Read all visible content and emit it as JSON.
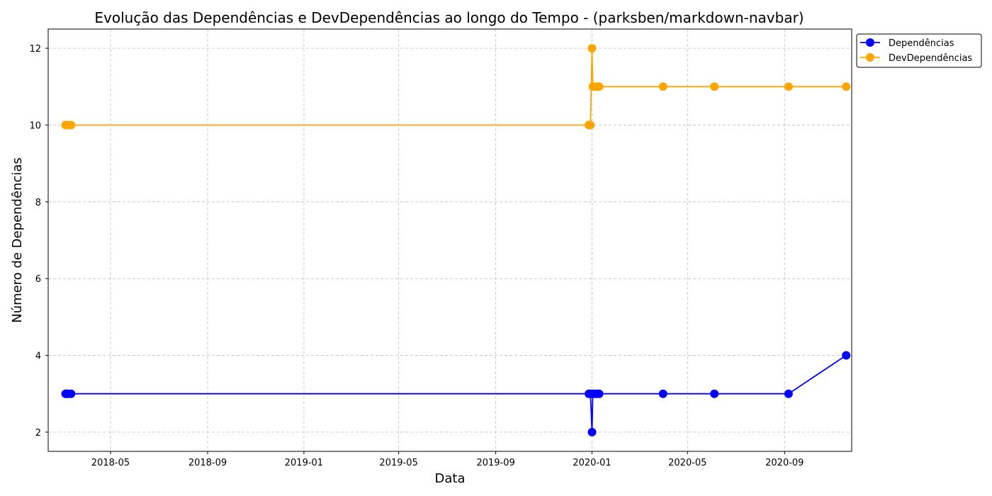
{
  "chart_data": {
    "type": "line",
    "title": "Evolução das Dependências e DevDependências ao longo do Tempo - (parksben/markdown-navbar)",
    "xlabel": "Data",
    "ylabel": "Número de Dependências",
    "xlim": [
      "2018-02-11",
      "2020-11-25"
    ],
    "ylim": [
      1.5,
      12.5
    ],
    "x_ticks": [
      {
        "date": "2018-05-01",
        "label": "2018-05"
      },
      {
        "date": "2018-09-01",
        "label": "2018-09"
      },
      {
        "date": "2019-01-01",
        "label": "2019-01"
      },
      {
        "date": "2019-05-01",
        "label": "2019-05"
      },
      {
        "date": "2019-09-01",
        "label": "2019-09"
      },
      {
        "date": "2020-01-01",
        "label": "2020-01"
      },
      {
        "date": "2020-05-01",
        "label": "2020-05"
      },
      {
        "date": "2020-09-01",
        "label": "2020-09"
      }
    ],
    "y_ticks": [
      2,
      4,
      6,
      8,
      10,
      12
    ],
    "grid": true,
    "legend_position": "outside top-right",
    "x": [
      "2018-03-05",
      "2018-03-06",
      "2018-03-07",
      "2018-03-08",
      "2018-03-12",
      "2019-12-28",
      "2019-12-29",
      "2019-12-30",
      "2020-01-01",
      "2020-01-02",
      "2020-01-05",
      "2020-01-08",
      "2020-01-10",
      "2020-03-31",
      "2020-06-04",
      "2020-09-06",
      "2020-11-18"
    ],
    "series": [
      {
        "name": "Dependências",
        "color": "#0000ff",
        "values": [
          3,
          3,
          3,
          3,
          3,
          3,
          3,
          3,
          2,
          3,
          3,
          3,
          3,
          3,
          3,
          3,
          4
        ]
      },
      {
        "name": "DevDependências",
        "color": "#ffa500",
        "values": [
          10,
          10,
          10,
          10,
          10,
          10,
          10,
          10,
          12,
          11,
          11,
          11,
          11,
          11,
          11,
          11,
          11
        ]
      }
    ]
  }
}
